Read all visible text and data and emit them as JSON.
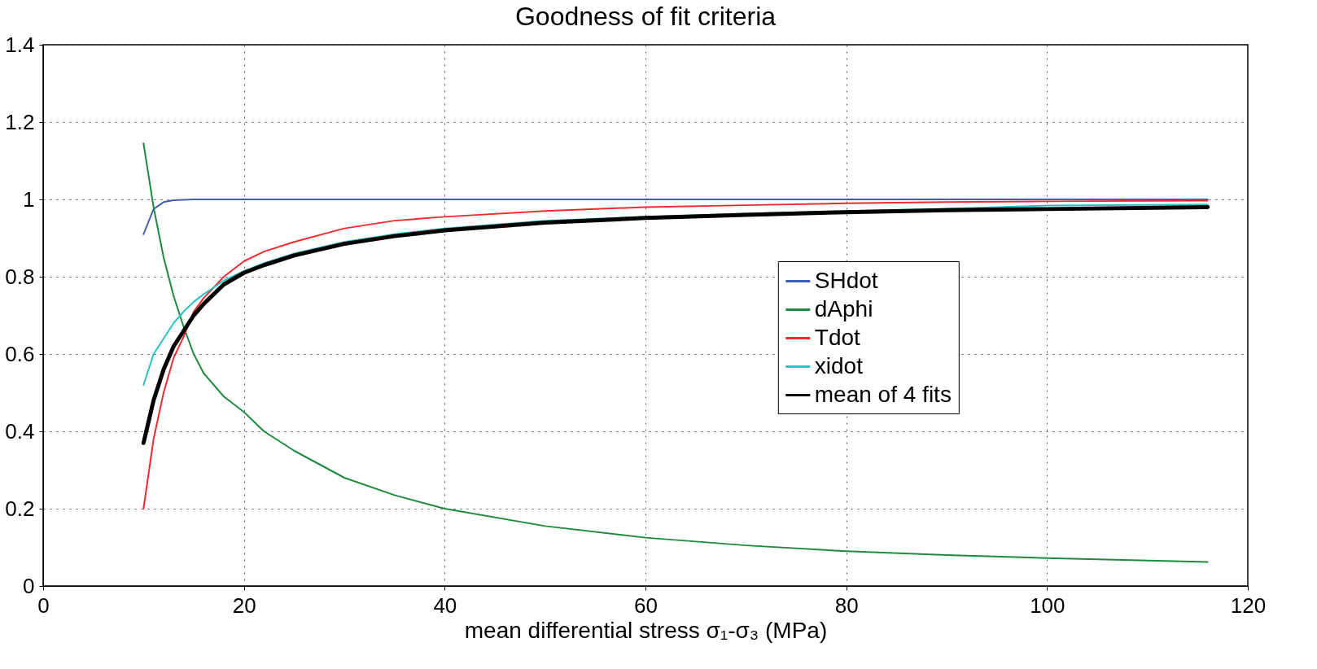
{
  "chart_data": {
    "type": "line",
    "title": "Goodness of fit criteria",
    "xlabel": "mean differential stress σ₁-σ₃ (MPa)",
    "x": [
      10,
      11,
      12,
      13,
      14,
      15,
      16,
      18,
      20,
      22,
      25,
      30,
      35,
      40,
      50,
      60,
      70,
      80,
      90,
      100,
      116
    ],
    "series": [
      {
        "name": "SHdot",
        "color": "#3f5fb0",
        "values": [
          0.91,
          0.975,
          0.993,
          0.998,
          0.999,
          1.0,
          1.0,
          1.0,
          1.0,
          1.0,
          1.0,
          1.0,
          1.0,
          1.0,
          1.0,
          1.0,
          1.0,
          1.0,
          1.0,
          1.0,
          1.0
        ]
      },
      {
        "name": "dAphi",
        "color": "#1f8a3f",
        "values": [
          1.145,
          0.98,
          0.85,
          0.75,
          0.67,
          0.6,
          0.55,
          0.49,
          0.45,
          0.4,
          0.35,
          0.28,
          0.235,
          0.2,
          0.155,
          0.125,
          0.105,
          0.09,
          0.08,
          0.072,
          0.062
        ]
      },
      {
        "name": "Tdot",
        "color": "#ef2b30",
        "values": [
          0.2,
          0.38,
          0.5,
          0.59,
          0.645,
          0.71,
          0.745,
          0.8,
          0.84,
          0.865,
          0.89,
          0.925,
          0.945,
          0.955,
          0.97,
          0.98,
          0.985,
          0.99,
          0.993,
          0.995,
          0.997
        ]
      },
      {
        "name": "xidot",
        "color": "#29c2c8",
        "values": [
          0.52,
          0.6,
          0.64,
          0.68,
          0.71,
          0.735,
          0.755,
          0.79,
          0.815,
          0.835,
          0.86,
          0.89,
          0.91,
          0.925,
          0.945,
          0.955,
          0.963,
          0.97,
          0.976,
          0.984,
          0.987
        ]
      },
      {
        "name": "mean of 4 fits",
        "color": "#000000",
        "values": [
          0.37,
          0.48,
          0.56,
          0.62,
          0.66,
          0.7,
          0.73,
          0.78,
          0.81,
          0.83,
          0.855,
          0.885,
          0.905,
          0.92,
          0.94,
          0.952,
          0.96,
          0.967,
          0.972,
          0.975,
          0.98
        ]
      }
    ],
    "xlim": [
      0,
      120
    ],
    "xticks": [
      0,
      20,
      40,
      60,
      80,
      100,
      120
    ],
    "ylim": [
      0,
      1.4
    ],
    "yticks": [
      0,
      0.2,
      0.4,
      0.6,
      0.8,
      1,
      1.2,
      1.4
    ],
    "grid": true,
    "legend": "right",
    "line_style": "solid",
    "marker": "none"
  }
}
